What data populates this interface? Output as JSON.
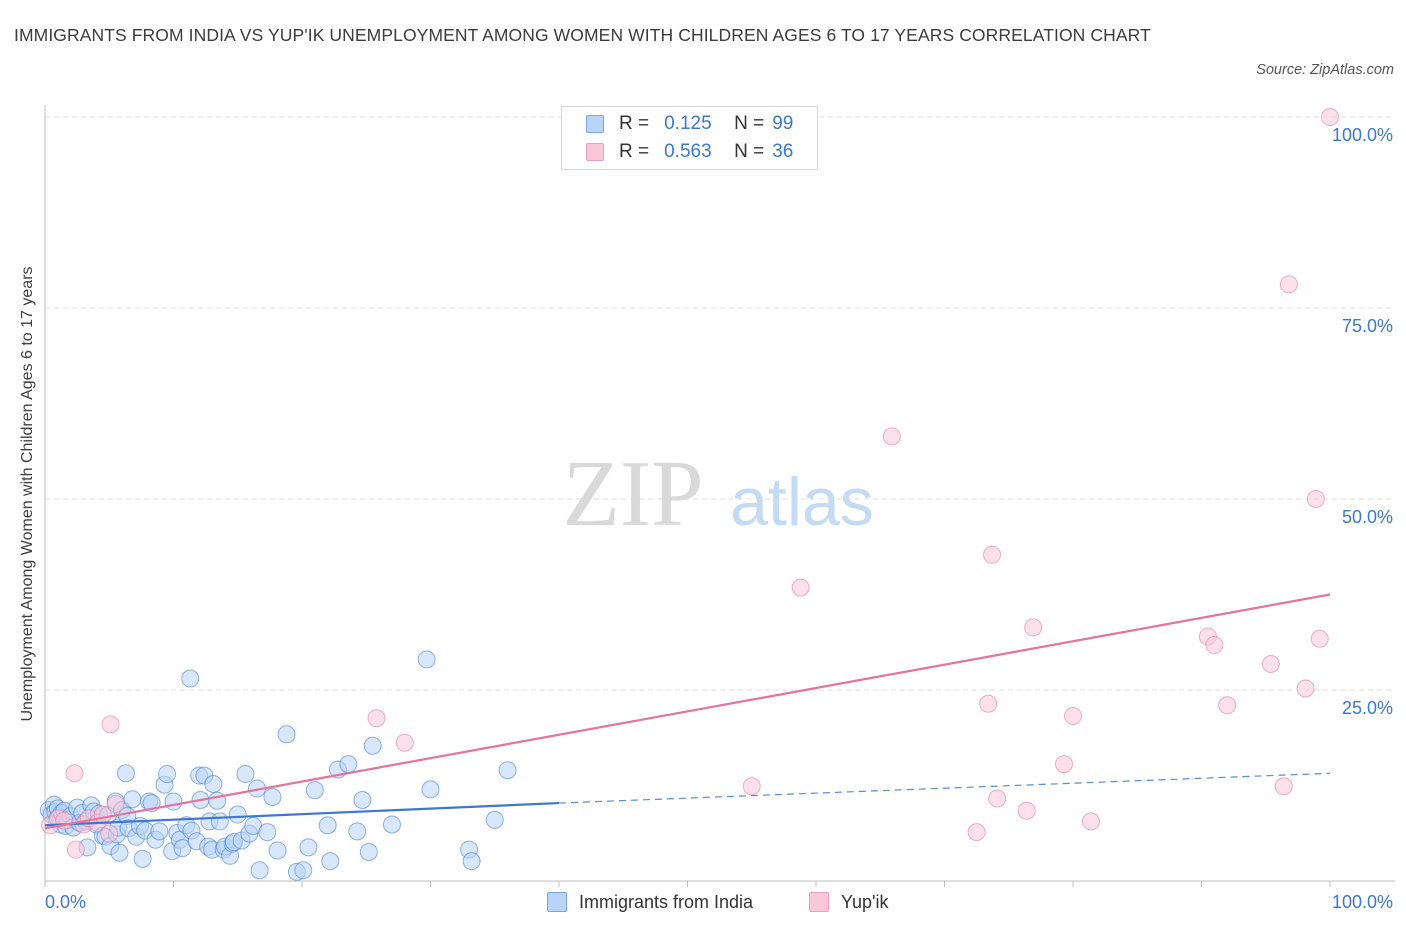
{
  "title": "IMMIGRANTS FROM INDIA VS YUP'IK UNEMPLOYMENT AMONG WOMEN WITH CHILDREN AGES 6 TO 17 YEARS CORRELATION CHART",
  "source": "Source: ZipAtlas.com",
  "watermark": {
    "zip": "ZIP",
    "atlas": "atlas"
  },
  "legend": {
    "rows": [
      {
        "r_label": "R =",
        "r_value": "0.125",
        "n_label": "N =",
        "n_value": "99"
      },
      {
        "r_label": "R =",
        "r_value": "0.563",
        "n_label": "N =",
        "n_value": "36"
      }
    ]
  },
  "bottom_legend": [
    "Immigrants from India",
    "Yup'ik"
  ],
  "colors": {
    "india": "#3d78cc",
    "india_fill": "#b8d4f7",
    "yupik": "#e5739a",
    "yupik_fill": "#f9c8d8",
    "grid": "#dedede",
    "tick_label": "#3d78cc"
  },
  "chart_data": {
    "type": "scatter",
    "title": "IMMIGRANTS FROM INDIA VS YUP'IK UNEMPLOYMENT AMONG WOMEN WITH CHILDREN AGES 6 TO 17 YEARS CORRELATION CHART",
    "xlabel": "",
    "ylabel": "Unemployment Among Women with Children Ages 6 to 17 years",
    "xlim": [
      0,
      100
    ],
    "ylim": [
      0,
      100
    ],
    "x_tick_labels": [
      "0.0%",
      "100.0%"
    ],
    "y_tick_labels": [
      "25.0%",
      "50.0%",
      "75.0%",
      "100.0%"
    ],
    "y_ticks": [
      25,
      50,
      75,
      100
    ],
    "grid": true,
    "legend_position": "top-center",
    "series": [
      {
        "name": "Immigrants from India",
        "color": "#3d78cc",
        "r": 0.125,
        "n": 99,
        "trend": {
          "x": [
            0,
            40
          ],
          "y": [
            7.3,
            10.2
          ],
          "dashed_to": [
            100,
            14.1
          ]
        },
        "points": [
          [
            0.3,
            9.3
          ],
          [
            0.5,
            8.7
          ],
          [
            0.7,
            10.0
          ],
          [
            0.8,
            9.0
          ],
          [
            0.9,
            8.0
          ],
          [
            1.0,
            9.5
          ],
          [
            1.1,
            8.4
          ],
          [
            1.2,
            7.4
          ],
          [
            1.3,
            8.9
          ],
          [
            1.5,
            9.2
          ],
          [
            1.6,
            7.2
          ],
          [
            1.8,
            8.0
          ],
          [
            2.0,
            8.5
          ],
          [
            2.2,
            7.0
          ],
          [
            2.5,
            9.6
          ],
          [
            2.7,
            7.6
          ],
          [
            2.9,
            8.9
          ],
          [
            3.2,
            7.8
          ],
          [
            3.3,
            4.4
          ],
          [
            3.6,
            9.9
          ],
          [
            3.8,
            9.1
          ],
          [
            4.0,
            7.4
          ],
          [
            4.2,
            8.8
          ],
          [
            4.5,
            5.9
          ],
          [
            4.7,
            5.8
          ],
          [
            4.9,
            8.6
          ],
          [
            5.1,
            4.6
          ],
          [
            5.5,
            10.4
          ],
          [
            5.6,
            6.1
          ],
          [
            5.7,
            7.0
          ],
          [
            5.8,
            3.7
          ],
          [
            6.0,
            9.3
          ],
          [
            6.3,
            14.1
          ],
          [
            6.4,
            8.5
          ],
          [
            6.5,
            6.9
          ],
          [
            6.8,
            10.7
          ],
          [
            7.1,
            5.8
          ],
          [
            7.4,
            7.2
          ],
          [
            7.6,
            2.9
          ],
          [
            7.8,
            6.6
          ],
          [
            8.1,
            10.4
          ],
          [
            8.3,
            10.2
          ],
          [
            8.6,
            5.4
          ],
          [
            8.9,
            6.5
          ],
          [
            9.3,
            12.6
          ],
          [
            9.5,
            14.0
          ],
          [
            9.9,
            3.9
          ],
          [
            10.0,
            10.4
          ],
          [
            10.3,
            6.3
          ],
          [
            10.5,
            5.4
          ],
          [
            10.7,
            4.3
          ],
          [
            11.0,
            7.3
          ],
          [
            11.3,
            26.5
          ],
          [
            11.4,
            6.6
          ],
          [
            11.8,
            5.2
          ],
          [
            12.0,
            13.8
          ],
          [
            12.1,
            10.6
          ],
          [
            12.4,
            13.8
          ],
          [
            12.7,
            4.5
          ],
          [
            12.8,
            7.8
          ],
          [
            13.0,
            4.1
          ],
          [
            13.1,
            12.7
          ],
          [
            13.4,
            10.5
          ],
          [
            13.6,
            7.8
          ],
          [
            13.9,
            4.1
          ],
          [
            14.0,
            4.5
          ],
          [
            14.4,
            3.3
          ],
          [
            14.6,
            4.9
          ],
          [
            14.7,
            5.1
          ],
          [
            15.0,
            8.7
          ],
          [
            15.3,
            5.3
          ],
          [
            15.6,
            14.0
          ],
          [
            15.9,
            6.2
          ],
          [
            16.2,
            7.2
          ],
          [
            16.5,
            12.1
          ],
          [
            16.7,
            1.4
          ],
          [
            17.3,
            6.4
          ],
          [
            17.7,
            11.0
          ],
          [
            18.1,
            4.0
          ],
          [
            18.8,
            19.2
          ],
          [
            19.6,
            1.2
          ],
          [
            20.1,
            1.4
          ],
          [
            20.5,
            4.4
          ],
          [
            21.0,
            11.9
          ],
          [
            22.0,
            7.3
          ],
          [
            22.2,
            2.6
          ],
          [
            22.8,
            14.6
          ],
          [
            23.6,
            15.3
          ],
          [
            24.3,
            6.5
          ],
          [
            24.7,
            10.6
          ],
          [
            25.2,
            3.8
          ],
          [
            25.5,
            17.7
          ],
          [
            27.0,
            7.4
          ],
          [
            29.7,
            29.0
          ],
          [
            30.0,
            12.0
          ],
          [
            33.0,
            4.1
          ],
          [
            33.2,
            2.6
          ],
          [
            35.0,
            8.0
          ],
          [
            36.0,
            14.5
          ]
        ]
      },
      {
        "name": "Yup'ik",
        "color": "#e5739a",
        "r": 0.563,
        "n": 36,
        "trend": {
          "x": [
            0,
            100
          ],
          "y": [
            6.9,
            37.5
          ]
        },
        "points": [
          [
            0.4,
            7.3
          ],
          [
            1.0,
            8.2
          ],
          [
            1.5,
            7.9
          ],
          [
            2.3,
            14.1
          ],
          [
            2.4,
            4.1
          ],
          [
            3.0,
            7.4
          ],
          [
            3.4,
            8.2
          ],
          [
            4.1,
            7.6
          ],
          [
            4.5,
            8.7
          ],
          [
            5.0,
            6.2
          ],
          [
            5.1,
            20.5
          ],
          [
            5.5,
            10.1
          ],
          [
            25.8,
            21.3
          ],
          [
            28.0,
            18.1
          ],
          [
            55.0,
            12.4
          ],
          [
            58.8,
            38.4
          ],
          [
            65.9,
            58.2
          ],
          [
            72.5,
            6.4
          ],
          [
            73.4,
            23.2
          ],
          [
            73.7,
            42.7
          ],
          [
            74.1,
            10.8
          ],
          [
            76.4,
            9.2
          ],
          [
            76.9,
            33.2
          ],
          [
            79.3,
            15.3
          ],
          [
            80.0,
            21.6
          ],
          [
            81.4,
            7.8
          ],
          [
            90.5,
            32.0
          ],
          [
            91.0,
            30.9
          ],
          [
            92.0,
            23.0
          ],
          [
            95.4,
            28.4
          ],
          [
            96.4,
            12.4
          ],
          [
            96.8,
            78.1
          ],
          [
            98.1,
            25.2
          ],
          [
            98.9,
            50.0
          ],
          [
            99.2,
            31.7
          ],
          [
            100,
            100
          ]
        ]
      }
    ]
  }
}
